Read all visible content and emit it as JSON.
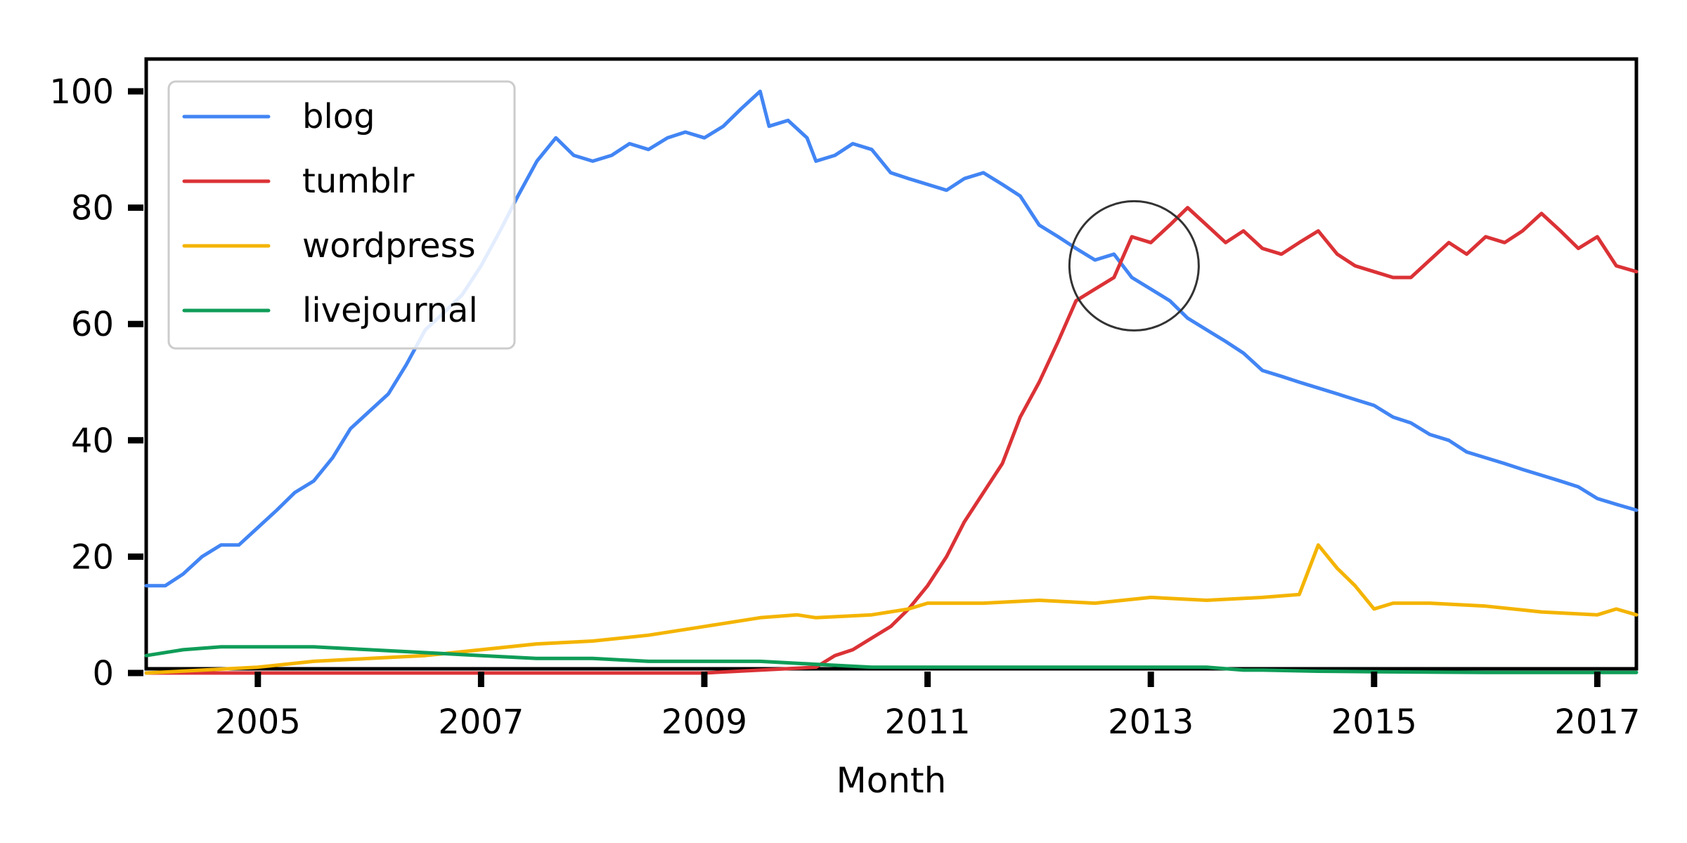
{
  "chart_data": {
    "type": "line",
    "title": "",
    "xlabel": "Month",
    "ylabel": "",
    "xlim": [
      2004.0,
      2017.35
    ],
    "ylim": [
      0,
      100
    ],
    "x_ticks": [
      2005,
      2007,
      2009,
      2011,
      2013,
      2015,
      2017
    ],
    "y_ticks": [
      0,
      20,
      40,
      60,
      80,
      100
    ],
    "grid": false,
    "legend_position": "upper-left",
    "annotation": {
      "type": "circle",
      "x": 2012.85,
      "y": 70
    },
    "series": [
      {
        "name": "blog",
        "color": "#4285F4",
        "points": [
          [
            2004.0,
            15
          ],
          [
            2004.17,
            15
          ],
          [
            2004.33,
            17
          ],
          [
            2004.5,
            20
          ],
          [
            2004.67,
            22
          ],
          [
            2004.83,
            22
          ],
          [
            2005.0,
            25
          ],
          [
            2005.17,
            28
          ],
          [
            2005.33,
            31
          ],
          [
            2005.5,
            33
          ],
          [
            2005.67,
            37
          ],
          [
            2005.83,
            42
          ],
          [
            2006.0,
            45
          ],
          [
            2006.17,
            48
          ],
          [
            2006.33,
            53
          ],
          [
            2006.5,
            59
          ],
          [
            2006.67,
            62
          ],
          [
            2006.83,
            65
          ],
          [
            2007.0,
            70
          ],
          [
            2007.17,
            76
          ],
          [
            2007.33,
            82
          ],
          [
            2007.5,
            88
          ],
          [
            2007.67,
            92
          ],
          [
            2007.83,
            89
          ],
          [
            2008.0,
            88
          ],
          [
            2008.17,
            89
          ],
          [
            2008.33,
            91
          ],
          [
            2008.5,
            90
          ],
          [
            2008.67,
            92
          ],
          [
            2008.83,
            93
          ],
          [
            2009.0,
            92
          ],
          [
            2009.17,
            94
          ],
          [
            2009.33,
            97
          ],
          [
            2009.5,
            100
          ],
          [
            2009.58,
            94
          ],
          [
            2009.75,
            95
          ],
          [
            2009.92,
            92
          ],
          [
            2010.0,
            88
          ],
          [
            2010.17,
            89
          ],
          [
            2010.33,
            91
          ],
          [
            2010.5,
            90
          ],
          [
            2010.67,
            86
          ],
          [
            2010.83,
            85
          ],
          [
            2011.0,
            84
          ],
          [
            2011.17,
            83
          ],
          [
            2011.33,
            85
          ],
          [
            2011.5,
            86
          ],
          [
            2011.67,
            84
          ],
          [
            2011.83,
            82
          ],
          [
            2012.0,
            77
          ],
          [
            2012.17,
            75
          ],
          [
            2012.33,
            73
          ],
          [
            2012.5,
            71
          ],
          [
            2012.67,
            72
          ],
          [
            2012.83,
            68
          ],
          [
            2013.0,
            66
          ],
          [
            2013.17,
            64
          ],
          [
            2013.33,
            61
          ],
          [
            2013.5,
            59
          ],
          [
            2013.67,
            57
          ],
          [
            2013.83,
            55
          ],
          [
            2014.0,
            52
          ],
          [
            2014.17,
            51
          ],
          [
            2014.33,
            50
          ],
          [
            2014.5,
            49
          ],
          [
            2014.67,
            48
          ],
          [
            2014.83,
            47
          ],
          [
            2015.0,
            46
          ],
          [
            2015.17,
            44
          ],
          [
            2015.33,
            43
          ],
          [
            2015.5,
            41
          ],
          [
            2015.67,
            40
          ],
          [
            2015.83,
            38
          ],
          [
            2016.0,
            37
          ],
          [
            2016.17,
            36
          ],
          [
            2016.33,
            35
          ],
          [
            2016.5,
            34
          ],
          [
            2016.67,
            33
          ],
          [
            2016.83,
            32
          ],
          [
            2017.0,
            30
          ],
          [
            2017.17,
            29
          ],
          [
            2017.35,
            28
          ]
        ]
      },
      {
        "name": "tumblr",
        "color": "#DB3236",
        "points": [
          [
            2004.0,
            0
          ],
          [
            2005.0,
            0
          ],
          [
            2006.0,
            0
          ],
          [
            2007.0,
            0
          ],
          [
            2008.0,
            0
          ],
          [
            2009.0,
            0
          ],
          [
            2009.5,
            0.5
          ],
          [
            2010.0,
            1
          ],
          [
            2010.17,
            3
          ],
          [
            2010.33,
            4
          ],
          [
            2010.5,
            6
          ],
          [
            2010.67,
            8
          ],
          [
            2010.83,
            11
          ],
          [
            2011.0,
            15
          ],
          [
            2011.17,
            20
          ],
          [
            2011.33,
            26
          ],
          [
            2011.5,
            31
          ],
          [
            2011.67,
            36
          ],
          [
            2011.83,
            44
          ],
          [
            2012.0,
            50
          ],
          [
            2012.17,
            57
          ],
          [
            2012.33,
            64
          ],
          [
            2012.5,
            66
          ],
          [
            2012.67,
            68
          ],
          [
            2012.83,
            75
          ],
          [
            2013.0,
            74
          ],
          [
            2013.17,
            77
          ],
          [
            2013.33,
            80
          ],
          [
            2013.5,
            77
          ],
          [
            2013.67,
            74
          ],
          [
            2013.83,
            76
          ],
          [
            2014.0,
            73
          ],
          [
            2014.17,
            72
          ],
          [
            2014.33,
            74
          ],
          [
            2014.5,
            76
          ],
          [
            2014.67,
            72
          ],
          [
            2014.83,
            70
          ],
          [
            2015.0,
            69
          ],
          [
            2015.17,
            68
          ],
          [
            2015.33,
            68
          ],
          [
            2015.5,
            71
          ],
          [
            2015.67,
            74
          ],
          [
            2015.83,
            72
          ],
          [
            2016.0,
            75
          ],
          [
            2016.17,
            74
          ],
          [
            2016.33,
            76
          ],
          [
            2016.5,
            79
          ],
          [
            2016.67,
            76
          ],
          [
            2016.83,
            73
          ],
          [
            2017.0,
            75
          ],
          [
            2017.17,
            70
          ],
          [
            2017.35,
            69
          ]
        ]
      },
      {
        "name": "wordpress",
        "color": "#F4B400",
        "points": [
          [
            2004.0,
            0
          ],
          [
            2004.5,
            0.5
          ],
          [
            2005.0,
            1
          ],
          [
            2005.5,
            2
          ],
          [
            2006.0,
            2.5
          ],
          [
            2006.5,
            3
          ],
          [
            2007.0,
            4
          ],
          [
            2007.5,
            5
          ],
          [
            2008.0,
            5.5
          ],
          [
            2008.5,
            6.5
          ],
          [
            2009.0,
            8
          ],
          [
            2009.5,
            9.5
          ],
          [
            2009.83,
            10
          ],
          [
            2010.0,
            9.5
          ],
          [
            2010.5,
            10
          ],
          [
            2010.83,
            11
          ],
          [
            2011.0,
            12
          ],
          [
            2011.5,
            12
          ],
          [
            2012.0,
            12.5
          ],
          [
            2012.5,
            12
          ],
          [
            2013.0,
            13
          ],
          [
            2013.5,
            12.5
          ],
          [
            2014.0,
            13
          ],
          [
            2014.33,
            13.5
          ],
          [
            2014.5,
            22
          ],
          [
            2014.67,
            18
          ],
          [
            2014.83,
            15
          ],
          [
            2015.0,
            11
          ],
          [
            2015.17,
            12
          ],
          [
            2015.5,
            12
          ],
          [
            2016.0,
            11.5
          ],
          [
            2016.5,
            10.5
          ],
          [
            2017.0,
            10
          ],
          [
            2017.17,
            11
          ],
          [
            2017.35,
            10
          ]
        ]
      },
      {
        "name": "livejournal",
        "color": "#0F9D58",
        "points": [
          [
            2004.0,
            3
          ],
          [
            2004.33,
            4
          ],
          [
            2004.67,
            4.5
          ],
          [
            2005.0,
            4.5
          ],
          [
            2005.5,
            4.5
          ],
          [
            2006.0,
            4
          ],
          [
            2006.5,
            3.5
          ],
          [
            2007.0,
            3
          ],
          [
            2007.5,
            2.5
          ],
          [
            2008.0,
            2.5
          ],
          [
            2008.5,
            2
          ],
          [
            2009.0,
            2
          ],
          [
            2009.5,
            2
          ],
          [
            2010.0,
            1.5
          ],
          [
            2010.5,
            1
          ],
          [
            2011.0,
            1
          ],
          [
            2011.5,
            1
          ],
          [
            2012.0,
            1
          ],
          [
            2012.5,
            1
          ],
          [
            2013.0,
            1
          ],
          [
            2013.5,
            1
          ],
          [
            2013.83,
            0.5
          ],
          [
            2014.0,
            0.5
          ],
          [
            2014.5,
            0.3
          ],
          [
            2015.0,
            0.2
          ],
          [
            2016.0,
            0.1
          ],
          [
            2017.35,
            0.1
          ]
        ]
      }
    ]
  }
}
